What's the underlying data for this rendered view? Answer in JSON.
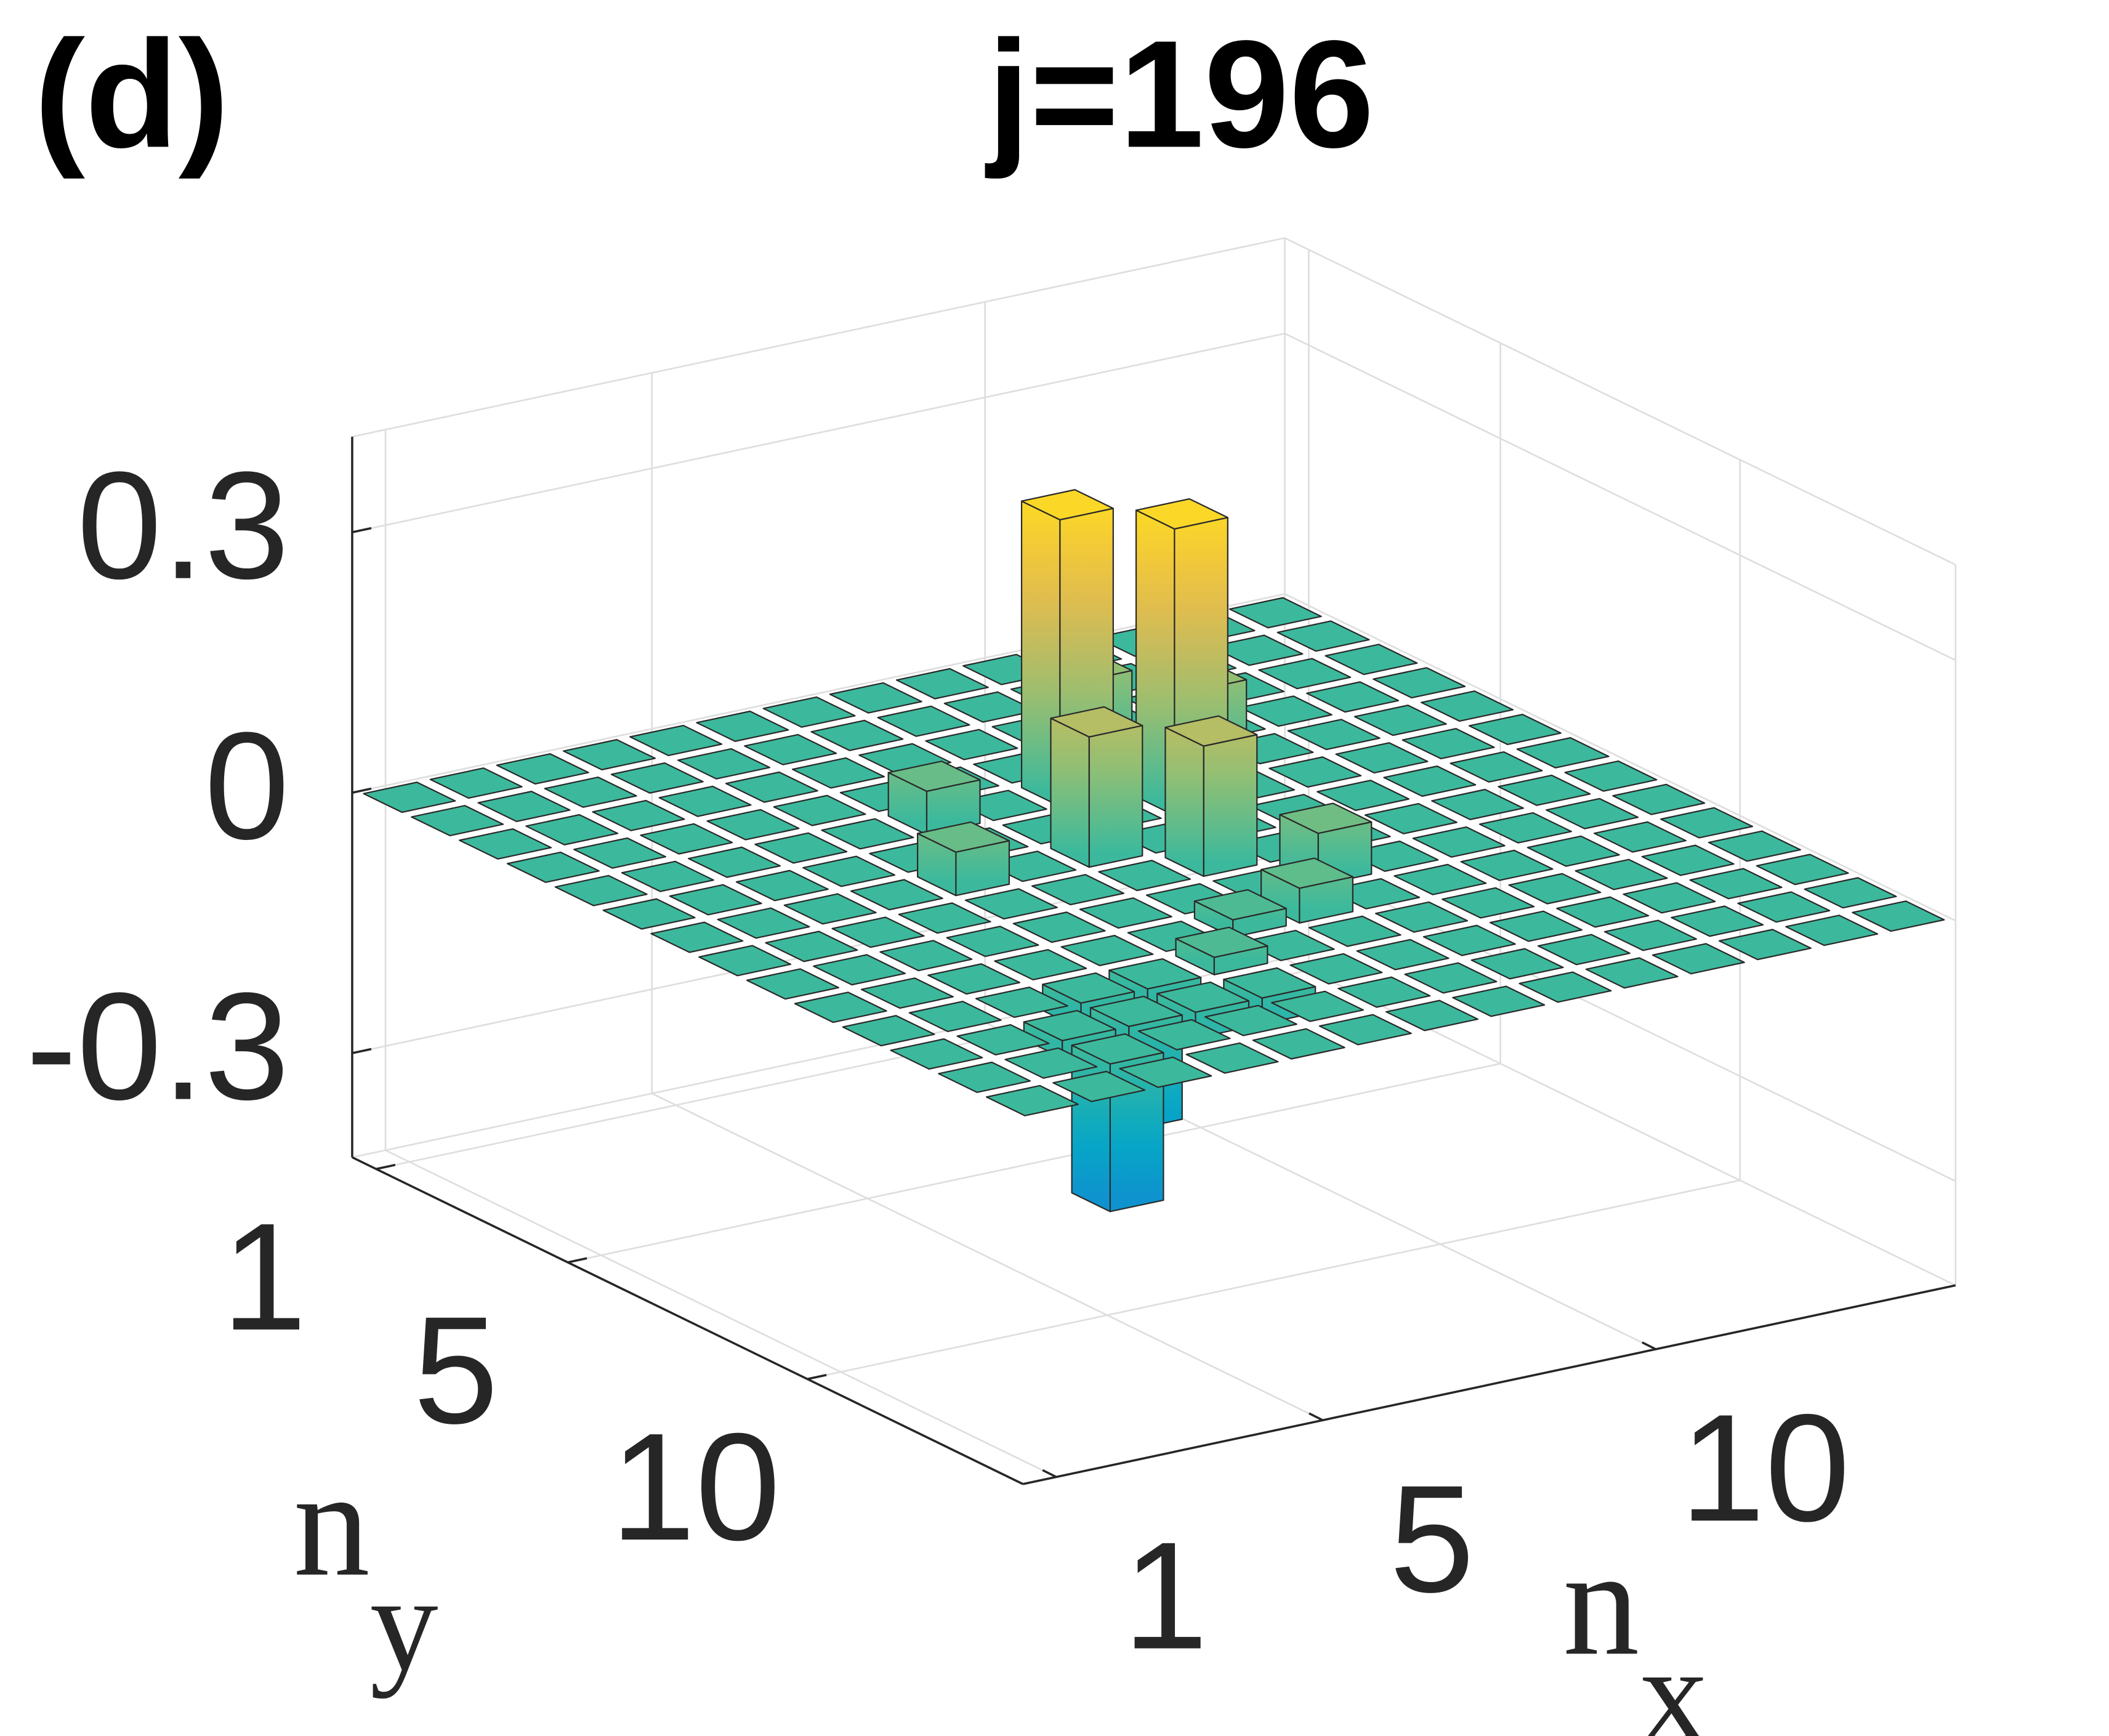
{
  "chart_data": {
    "type": "bar3",
    "panel_label": "(d)",
    "title": "j=196",
    "x": [
      1,
      2,
      3,
      4,
      5,
      6,
      7,
      8,
      9,
      10,
      11,
      12,
      13,
      14
    ],
    "y": [
      1,
      2,
      3,
      4,
      5,
      6,
      7,
      8,
      9,
      10,
      11,
      12,
      13,
      14
    ],
    "values": [
      [
        0,
        0,
        0,
        0,
        0,
        0,
        0,
        0,
        0,
        0,
        0,
        0,
        0,
        0
      ],
      [
        0,
        0,
        0,
        0,
        0,
        0,
        0,
        0,
        0,
        0,
        0,
        0,
        0,
        0
      ],
      [
        0,
        0,
        0,
        0,
        0,
        0,
        0,
        0,
        0,
        0,
        0,
        0,
        0,
        0
      ],
      [
        0,
        0,
        0,
        0,
        0,
        0,
        0,
        0,
        0.1,
        0,
        0,
        0,
        0,
        0
      ],
      [
        0,
        0,
        0,
        0,
        0,
        0.05,
        0,
        0.33,
        0,
        0.1,
        0,
        0,
        0,
        0
      ],
      [
        0,
        0,
        0,
        0,
        0,
        0,
        0,
        0,
        0.33,
        0,
        0,
        0,
        0,
        0
      ],
      [
        0,
        0,
        0,
        0,
        0.05,
        0,
        0.15,
        0,
        0,
        0,
        0,
        0,
        0,
        0
      ],
      [
        0,
        0,
        0,
        0,
        0,
        0,
        0,
        0.15,
        0,
        0,
        0,
        0,
        0,
        0
      ],
      [
        0,
        0,
        0,
        0,
        0,
        0,
        0,
        0,
        0.06,
        0,
        0,
        0,
        0,
        0
      ],
      [
        0,
        0,
        0,
        0,
        0,
        0,
        0.02,
        0.04,
        0,
        0,
        0,
        0,
        0,
        0
      ],
      [
        0,
        0,
        0,
        -0.03,
        -0.02,
        0.02,
        0,
        0,
        0,
        0,
        0,
        0,
        0,
        0
      ],
      [
        0,
        0,
        -0.02,
        -0.12,
        -0.03,
        -0.03,
        0,
        0,
        0,
        0,
        0,
        0,
        0,
        0
      ],
      [
        0,
        0,
        -0.17,
        0,
        0,
        0,
        0,
        0,
        0,
        0,
        0,
        0,
        0,
        0
      ],
      [
        0,
        0,
        0,
        0,
        0,
        0,
        0,
        0,
        0,
        0,
        0,
        0,
        0,
        0
      ]
    ],
    "xlim": [
      0.5,
      14.5
    ],
    "ylim": [
      0.5,
      14.5
    ],
    "zlim": [
      -0.42,
      0.41
    ],
    "xticks": [
      1,
      5,
      10
    ],
    "yticks": [
      1,
      5,
      10
    ],
    "zticks": [
      -0.3,
      0,
      0.3
    ],
    "xlabel": [
      "n",
      "x"
    ],
    "ylabel": [
      "n",
      "y"
    ],
    "colormap": "parula",
    "grid": true
  }
}
